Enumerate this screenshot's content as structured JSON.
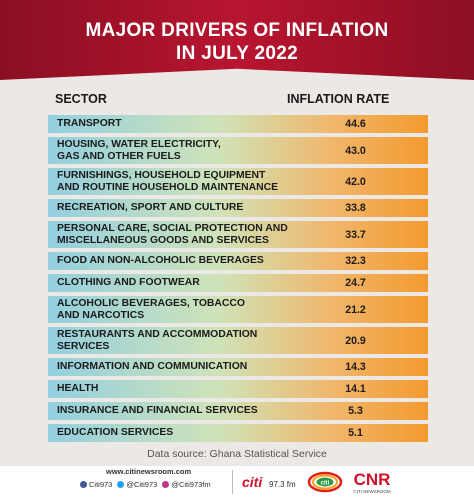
{
  "title_line1": "MAJOR DRIVERS OF INFLATION",
  "title_line2": "IN JULY 2022",
  "columns": {
    "sector": "SECTOR",
    "rate": "INFLATION RATE"
  },
  "chart_data": {
    "type": "table",
    "title": "MAJOR DRIVERS OF INFLATION IN JULY 2022",
    "columns": [
      "SECTOR",
      "INFLATION RATE"
    ],
    "rows": [
      {
        "sector": "TRANSPORT",
        "value": "44.6"
      },
      {
        "sector": "HOUSING, WATER ELECTRICITY,\nGAS AND OTHER FUELS",
        "value": "43.0"
      },
      {
        "sector": "FURNISHINGS, HOUSEHOLD EQUIPMENT\nAND ROUTINE HOUSEHOLD MAINTENANCE",
        "value": "42.0"
      },
      {
        "sector": "RECREATION, SPORT AND CULTURE",
        "value": "33.8"
      },
      {
        "sector": "PERSONAL CARE, SOCIAL PROTECTION AND\nMISCELLANEOUS GOODS AND SERVICES",
        "value": "33.7"
      },
      {
        "sector": "FOOD AN NON-ALCOHOLIC BEVERAGES",
        "value": "32.3"
      },
      {
        "sector": "CLOTHING AND FOOTWEAR",
        "value": "24.7"
      },
      {
        "sector": "ALCOHOLIC BEVERAGES, TOBACCO\nAND NARCOTICS",
        "value": "21.2"
      },
      {
        "sector": "RESTAURANTS AND ACCOMMODATION\nSERVICES",
        "value": "20.9"
      },
      {
        "sector": "INFORMATION AND COMMUNICATION",
        "value": "14.3"
      },
      {
        "sector": "HEALTH",
        "value": "14.1"
      },
      {
        "sector": "INSURANCE AND FINANCIAL SERVICES",
        "value": "5.3"
      },
      {
        "sector": "EDUCATION SERVICES",
        "value": "5.1"
      }
    ]
  },
  "source": "Data source: Ghana Statistical Service",
  "footer": {
    "url": "www.citinewsroom.com",
    "social": [
      {
        "icon": "facebook-icon",
        "text": "Citi973",
        "color": "#3b5998"
      },
      {
        "icon": "twitter-icon",
        "text": "@Citi973",
        "color": "#1da1f2"
      },
      {
        "icon": "instagram-icon",
        "text": "@Citi973fm",
        "color": "#c13584"
      }
    ],
    "logos": {
      "citi_fm": "citi 97.3 fm",
      "citi_tv": "citi",
      "cnr": "CNR",
      "cnr_sub": "CITI NEWSROOM"
    }
  },
  "colors": {
    "header_red": "#b81530",
    "row_left": "#93cfe0",
    "row_right": "#f39a2e",
    "background": "#ece8e6"
  }
}
